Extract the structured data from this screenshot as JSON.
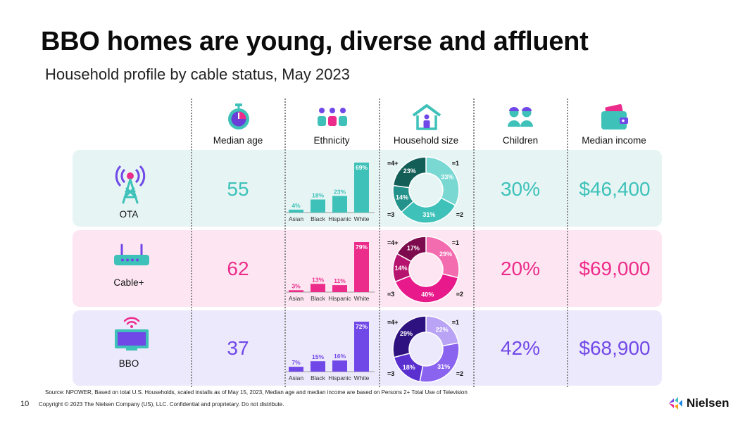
{
  "title": "BBO homes are young, diverse and affluent",
  "subtitle": "Household profile by cable status, May 2023",
  "columns": {
    "median_age": "Median age",
    "ethnicity": "Ethnicity",
    "household_size": "Household size",
    "children": "Children",
    "median_income": "Median income"
  },
  "rows": [
    {
      "label": "OTA",
      "icon": "radio-tower-icon",
      "color": "#3ec1b9",
      "median_age": "55",
      "children": "30%",
      "median_income": "$46,400"
    },
    {
      "label": "Cable+",
      "icon": "cable-router-icon",
      "color": "#ec2c8b",
      "median_age": "62",
      "children": "20%",
      "median_income": "$69,000"
    },
    {
      "label": "BBO",
      "icon": "tv-wifi-icon",
      "color": "#7048e8",
      "median_age": "37",
      "children": "42%",
      "median_income": "$68,900"
    }
  ],
  "chart_data": [
    {
      "type": "bar",
      "categories": [
        "Asian",
        "Black",
        "Hispanic",
        "White"
      ],
      "values": [
        4,
        18,
        23,
        69
      ],
      "value_labels": [
        "4%",
        "18%",
        "23%",
        "69%"
      ],
      "ylim": [
        0,
        69
      ]
    },
    {
      "type": "pie",
      "categories": [
        "=1",
        "=2",
        "=3",
        "=4+"
      ],
      "values": [
        33,
        31,
        14,
        23
      ],
      "value_labels": [
        "33%",
        "31%",
        "14%",
        "23%"
      ],
      "colors": [
        "#7ad8d3",
        "#3ec1b9",
        "#22928a",
        "#145e58"
      ]
    },
    {
      "type": "bar",
      "categories": [
        "Asian",
        "Black",
        "Hispanic",
        "White"
      ],
      "values": [
        3,
        13,
        11,
        79
      ],
      "value_labels": [
        "3%",
        "13%",
        "11%",
        "79%"
      ],
      "ylim": [
        0,
        79
      ]
    },
    {
      "type": "pie",
      "categories": [
        "=1",
        "=2",
        "=3",
        "=4+"
      ],
      "values": [
        29,
        40,
        14,
        17
      ],
      "value_labels": [
        "29%",
        "40%",
        "14%",
        "17%"
      ],
      "colors": [
        "#f46cb0",
        "#e8198a",
        "#b5136e",
        "#7c0a4c"
      ]
    },
    {
      "type": "bar",
      "categories": [
        "Asian",
        "Black",
        "Hispanic",
        "White"
      ],
      "values": [
        7,
        15,
        16,
        72
      ],
      "value_labels": [
        "7%",
        "15%",
        "16%",
        "72%"
      ],
      "ylim": [
        0,
        72
      ]
    },
    {
      "type": "pie",
      "categories": [
        "=1",
        "=2",
        "=3",
        "=4+"
      ],
      "values": [
        22,
        31,
        18,
        29
      ],
      "value_labels": [
        "22%",
        "31%",
        "18%",
        "29%"
      ],
      "colors": [
        "#b9a3f5",
        "#8a63ee",
        "#5a2fd0",
        "#2e1380"
      ]
    }
  ],
  "source": "Source: NPOWER, Based on total U.S. Households, scaled installs as of May 15, 2023, Median age and median income are based on Persons 2+ Total Use of Television",
  "page_number": "10",
  "copyright": "Copyright © 2023 The Nielsen Company (US), LLC. Confidential and proprietary. Do not distribute.",
  "brand": "Nielsen"
}
